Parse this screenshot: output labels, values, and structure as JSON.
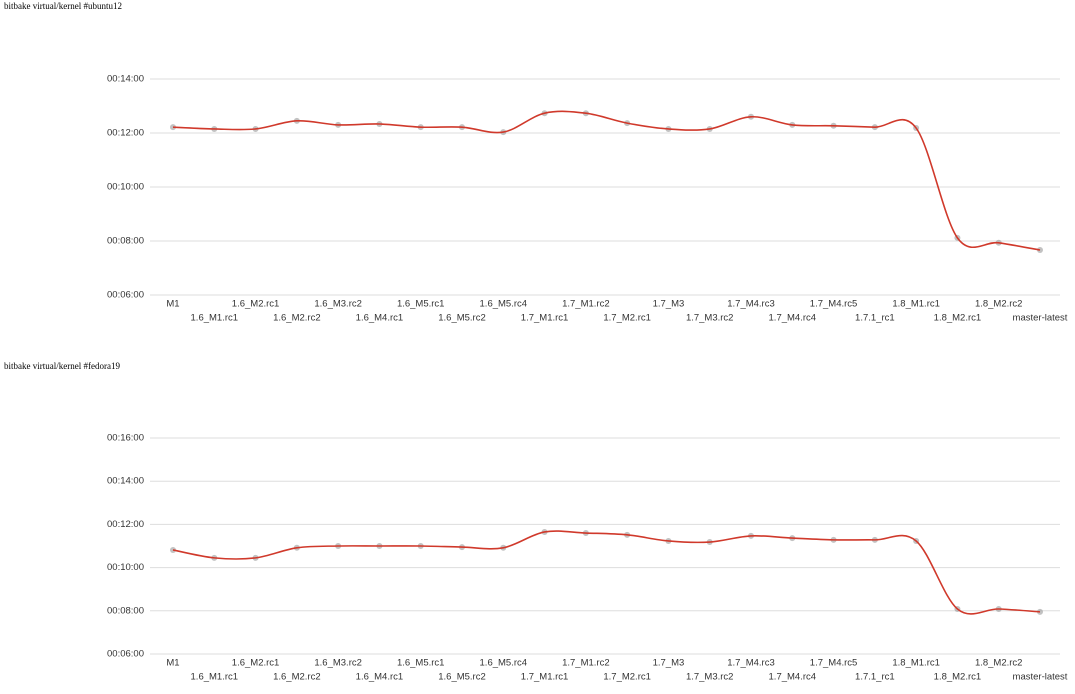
{
  "chart_data": [
    {
      "type": "line",
      "title": "bitbake virtual/kernel #ubuntu12",
      "categories": [
        "M1",
        "1.6_M1.rc1",
        "1.6_M2.rc1",
        "1.6_M2.rc2",
        "1.6_M3.rc2",
        "1.6_M4.rc1",
        "1.6_M5.rc1",
        "1.6_M5.rc2",
        "1.6_M5.rc4",
        "1.7_M1.rc1",
        "1.7_M1.rc2",
        "1.7_M2.rc1",
        "1.7_M3",
        "1.7_M3.rc2",
        "1.7_M4.rc3",
        "1.7_M4.rc4",
        "1.7_M4.rc5",
        "1.7.1_rc1",
        "1.8_M1.rc1",
        "1.8_M2.rc1",
        "1.8_M2.rc2",
        "master-latest"
      ],
      "values": [
        733,
        729,
        729,
        747,
        738,
        740,
        733,
        733,
        722,
        764,
        764,
        742,
        729,
        729,
        756,
        738,
        736,
        733,
        731,
        487,
        476,
        460
      ],
      "color": "#d0392b",
      "ylim": [
        360,
        840
      ],
      "yticks": [
        {
          "value": 360,
          "label": "00:06:00"
        },
        {
          "value": 480,
          "label": "00:08:00"
        },
        {
          "value": 600,
          "label": "00:10:00"
        },
        {
          "value": 720,
          "label": "00:12:00"
        },
        {
          "value": 840,
          "label": "00:14:00"
        }
      ],
      "grid": true
    },
    {
      "type": "line",
      "title": "bitbake virtual/kernel #fedora19",
      "categories": [
        "M1",
        "1.6_M1.rc1",
        "1.6_M2.rc1",
        "1.6_M2.rc2",
        "1.6_M3.rc2",
        "1.6_M4.rc1",
        "1.6_M5.rc1",
        "1.6_M5.rc2",
        "1.6_M5.rc4",
        "1.7_M1.rc1",
        "1.7_M1.rc2",
        "1.7_M2.rc1",
        "1.7_M3",
        "1.7_M3.rc2",
        "1.7_M4.rc3",
        "1.7_M4.rc4",
        "1.7_M4.rc5",
        "1.7.1_rc1",
        "1.8_M1.rc1",
        "1.8_M2.rc1",
        "1.8_M2.rc2",
        "master-latest"
      ],
      "values": [
        649,
        627,
        627,
        655,
        660,
        660,
        660,
        657,
        655,
        699,
        696,
        691,
        674,
        671,
        688,
        682,
        677,
        677,
        674,
        485,
        485,
        477
      ],
      "color": "#d0392b",
      "ylim": [
        360,
        960
      ],
      "yticks": [
        {
          "value": 360,
          "label": "00:06:00"
        },
        {
          "value": 480,
          "label": "00:08:00"
        },
        {
          "value": 600,
          "label": "00:10:00"
        },
        {
          "value": 720,
          "label": "00:12:00"
        },
        {
          "value": 840,
          "label": "00:14:00"
        },
        {
          "value": 960,
          "label": "00:16:00"
        }
      ],
      "grid": true
    }
  ]
}
